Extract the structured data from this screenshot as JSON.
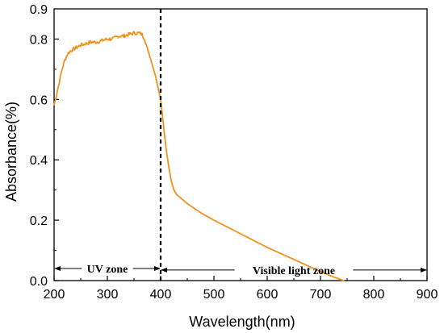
{
  "chart_data": {
    "type": "line",
    "title": "",
    "xlabel": "Wavelength(nm)",
    "ylabel": "Absorbance(%)",
    "xlim": [
      200,
      900
    ],
    "ylim": [
      0,
      0.9
    ],
    "xticks": [
      200,
      300,
      400,
      500,
      600,
      700,
      800,
      900
    ],
    "yticks": [
      0.0,
      0.2,
      0.4,
      0.6,
      0.8
    ],
    "ytick_labels": [
      "0.0",
      "0.2",
      "0.4",
      "0.6",
      "0.8"
    ],
    "yticks_extra_label": "0.9",
    "grid": false,
    "legend": "none",
    "series": [
      {
        "color": "#F0921E",
        "x": [
          200,
          205,
          210,
          215,
          220,
          225,
          230,
          240,
          250,
          260,
          270,
          280,
          290,
          300,
          310,
          320,
          330,
          340,
          350,
          355,
          360,
          365,
          370,
          375,
          380,
          385,
          390,
          395,
          400,
          405,
          410,
          415,
          420,
          425,
          430,
          440,
          450,
          475,
          500,
          550,
          600,
          650,
          700,
          720,
          740,
          745
        ],
        "y": [
          0.58,
          0.62,
          0.66,
          0.7,
          0.73,
          0.75,
          0.76,
          0.77,
          0.78,
          0.785,
          0.79,
          0.79,
          0.795,
          0.8,
          0.8,
          0.81,
          0.81,
          0.815,
          0.82,
          0.82,
          0.82,
          0.815,
          0.8,
          0.77,
          0.74,
          0.71,
          0.68,
          0.64,
          0.6,
          0.52,
          0.44,
          0.38,
          0.33,
          0.3,
          0.285,
          0.27,
          0.255,
          0.225,
          0.2,
          0.155,
          0.11,
          0.07,
          0.03,
          0.015,
          0.002,
          0.0
        ]
      }
    ],
    "annotations": {
      "divider_x": 400,
      "zones": [
        {
          "label": "UV zone",
          "from": 200,
          "to": 400,
          "y": 0.04
        },
        {
          "label": "Visible light zone",
          "from": 400,
          "to": 900,
          "y": 0.035
        }
      ]
    }
  }
}
